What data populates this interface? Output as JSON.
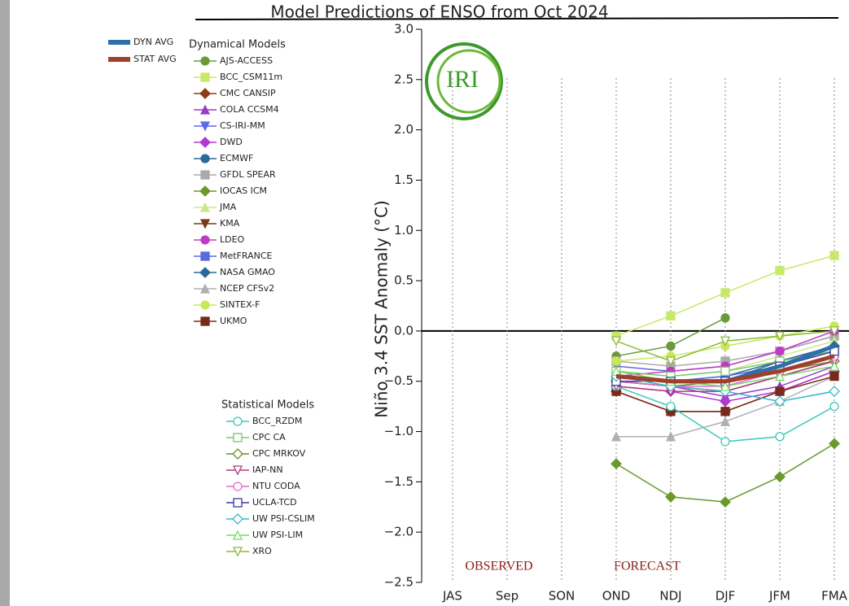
{
  "chart_data": {
    "type": "line",
    "title": "Model Predictions of ENSO from Oct 2024",
    "y_label": "Niño 3.4 SST Anomaly (°C)",
    "logo_text": "IRI",
    "annotations": [
      "OBSERVED",
      "FORECAST"
    ],
    "categories": [
      "JAS",
      "Sep",
      "SON",
      "OND",
      "NDJ",
      "DJF",
      "JFM",
      "FMA"
    ],
    "ylim": [
      -2.5,
      3.0
    ],
    "yticks": [
      {
        "value": 3.0,
        "label": "3.0"
      },
      {
        "value": 2.5,
        "label": "2.5"
      },
      {
        "value": 2.0,
        "label": "2.0"
      },
      {
        "value": 1.5,
        "label": "1.5"
      },
      {
        "value": 1.0,
        "label": "1.0"
      },
      {
        "value": 0.5,
        "label": "0.5"
      },
      {
        "value": 0,
        "label": "0.0"
      },
      {
        "value": -0.5,
        "label": "−0.5"
      },
      {
        "value": -1.0,
        "label": "−1.0"
      },
      {
        "value": -1.5,
        "label": "−1.5"
      },
      {
        "value": -2.0,
        "label": "−2.0"
      },
      {
        "value": -2.5,
        "label": "−2.5"
      }
    ],
    "grid": true,
    "averages": [
      {
        "name": "DYN AVG",
        "color": "#2f6fa8",
        "values": [
          null,
          null,
          null,
          -0.45,
          -0.5,
          -0.5,
          -0.35,
          -0.15
        ]
      },
      {
        "name": "STAT AVG",
        "color": "#a0402a",
        "values": [
          null,
          null,
          null,
          -0.45,
          -0.5,
          -0.5,
          -0.4,
          -0.25
        ]
      }
    ],
    "legend_groups": [
      {
        "title": "Dynamical Models",
        "series": [
          {
            "name": "AJS-ACCESS",
            "color": "#6a9a3a",
            "marker": "circle",
            "values": [
              null,
              null,
              null,
              -0.25,
              -0.15,
              0.13,
              null,
              null
            ]
          },
          {
            "name": "BCC_CSM11m",
            "color": "#c8e86a",
            "marker": "square",
            "values": [
              null,
              null,
              null,
              -0.05,
              0.15,
              0.38,
              0.6,
              0.75
            ]
          },
          {
            "name": "CMC CANSIP",
            "color": "#8b3a1a",
            "marker": "diamond",
            "values": [
              null,
              null,
              null,
              -0.6,
              -0.8,
              -0.8,
              -0.6,
              -0.4
            ]
          },
          {
            "name": "COLA CCSM4",
            "color": "#9a3ac8",
            "marker": "triangle",
            "values": [
              null,
              null,
              null,
              -0.5,
              -0.55,
              -0.65,
              -0.55,
              -0.35
            ]
          },
          {
            "name": "CS-IRI-MM",
            "color": "#5a6ae8",
            "marker": "triangle-down",
            "values": [
              null,
              null,
              null,
              -0.35,
              -0.4,
              -0.35,
              -0.2,
              -0.05
            ]
          },
          {
            "name": "DWD",
            "color": "#b03ad0",
            "marker": "diamond",
            "values": [
              null,
              null,
              null,
              -0.55,
              -0.6,
              -0.7,
              -0.6,
              -0.4
            ]
          },
          {
            "name": "ECMWF",
            "color": "#2a6a9a",
            "marker": "circle",
            "values": [
              null,
              null,
              null,
              -0.45,
              -0.5,
              -0.45,
              -0.3,
              -0.15
            ]
          },
          {
            "name": "GFDL SPEAR",
            "color": "#aaaaaa",
            "marker": "square",
            "values": [
              null,
              null,
              null,
              -0.3,
              -0.35,
              -0.3,
              -0.2,
              -0.05
            ]
          },
          {
            "name": "IOCAS ICM",
            "color": "#6a9a2a",
            "marker": "diamond",
            "values": [
              null,
              null,
              null,
              -1.32,
              -1.65,
              -1.7,
              -1.45,
              -1.12
            ]
          },
          {
            "name": "JMA",
            "color": "#c8e88a",
            "marker": "triangle",
            "values": [
              null,
              null,
              null,
              -0.4,
              -0.45,
              -0.4,
              -0.25,
              -0.1
            ]
          },
          {
            "name": "KMA",
            "color": "#7a3a1a",
            "marker": "triangle-down",
            "values": [
              null,
              null,
              null,
              -0.5,
              -0.55,
              -0.6,
              -0.45,
              -0.3
            ]
          },
          {
            "name": "LDEO",
            "color": "#c03ac8",
            "marker": "circle",
            "values": [
              null,
              null,
              null,
              -0.45,
              -0.4,
              -0.35,
              -0.2,
              0
            ]
          },
          {
            "name": "MetFRANCE",
            "color": "#5a6ae0",
            "marker": "square",
            "values": [
              null,
              null,
              null,
              -0.45,
              -0.5,
              -0.45,
              -0.35,
              -0.2
            ]
          },
          {
            "name": "NASA GMAO",
            "color": "#2a6a9a",
            "marker": "diamond",
            "values": [
              null,
              null,
              null,
              -0.5,
              -0.5,
              -0.5,
              -0.3,
              -0.15
            ]
          },
          {
            "name": "NCEP CFSv2",
            "color": "#b0b0b0",
            "marker": "triangle",
            "values": [
              null,
              null,
              null,
              -1.05,
              -1.05,
              -0.9,
              -0.7,
              -0.45
            ]
          },
          {
            "name": "SINTEX-F",
            "color": "#c8e85a",
            "marker": "circle",
            "values": [
              null,
              null,
              null,
              -0.3,
              -0.25,
              -0.15,
              -0.05,
              0.05
            ]
          },
          {
            "name": "UKMO",
            "color": "#7a2a1a",
            "marker": "square",
            "values": [
              null,
              null,
              null,
              -0.6,
              -0.8,
              -0.8,
              -0.6,
              -0.45
            ]
          }
        ]
      },
      {
        "title": "Statistical Models",
        "series": [
          {
            "name": "BCC_RZDM",
            "color": "#3ac8b8",
            "marker": "circle-open",
            "values": [
              null,
              null,
              null,
              -0.55,
              -0.75,
              -1.1,
              -1.05,
              -0.75
            ]
          },
          {
            "name": "CPC CA",
            "color": "#7ac86a",
            "marker": "square-open",
            "values": [
              null,
              null,
              null,
              -0.4,
              -0.45,
              -0.4,
              -0.3,
              -0.2
            ]
          },
          {
            "name": "CPC MRKOV",
            "color": "#6a8a2a",
            "marker": "diamond-open",
            "values": [
              null,
              null,
              null,
              -0.5,
              -0.55,
              -0.5,
              -0.4,
              -0.3
            ]
          },
          {
            "name": "IAP-NN",
            "color": "#b03a7a",
            "marker": "triangle-down-open",
            "values": [
              null,
              null,
              null,
              -0.55,
              -0.6,
              -0.6,
              -0.45,
              -0.3
            ]
          },
          {
            "name": "NTU CODA",
            "color": "#e06ad0",
            "marker": "circle-open",
            "values": [
              null,
              null,
              null,
              -0.5,
              -0.55,
              -0.55,
              -0.4,
              -0.25
            ]
          },
          {
            "name": "UCLA-TCD",
            "color": "#3a3a9a",
            "marker": "square-open",
            "values": [
              null,
              null,
              null,
              -0.5,
              -0.5,
              -0.5,
              -0.35,
              -0.2
            ]
          },
          {
            "name": "UW PSI-CSLIM",
            "color": "#3ab8c8",
            "marker": "diamond-open",
            "values": [
              null,
              null,
              null,
              -0.45,
              -0.55,
              -0.6,
              -0.7,
              -0.6
            ]
          },
          {
            "name": "UW PSI-LIM",
            "color": "#7ad86a",
            "marker": "triangle-open",
            "values": [
              null,
              null,
              null,
              -0.4,
              -0.5,
              -0.55,
              -0.45,
              -0.35
            ]
          },
          {
            "name": "XRO",
            "color": "#8ab83a",
            "marker": "triangle-down-open",
            "values": [
              null,
              null,
              null,
              -0.1,
              -0.3,
              -0.1,
              -0.05,
              0
            ]
          }
        ]
      }
    ]
  }
}
